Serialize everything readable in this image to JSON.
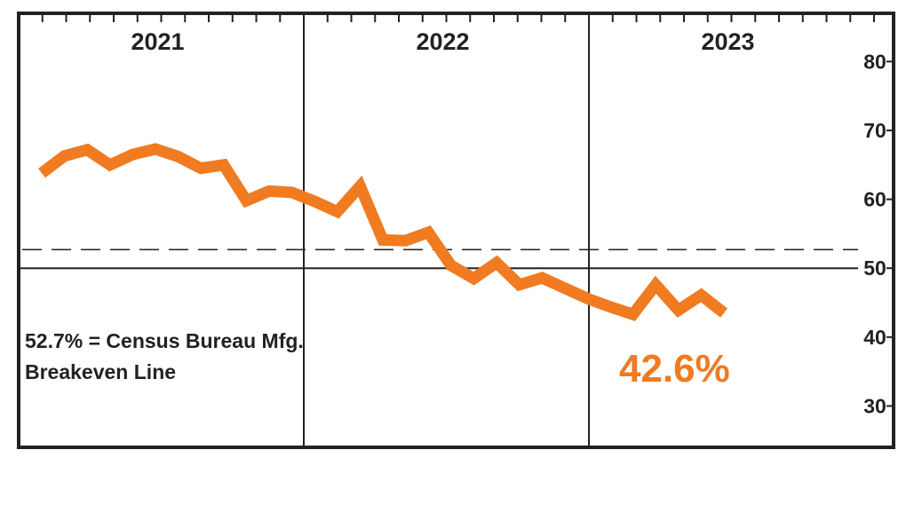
{
  "chart_data": {
    "type": "line",
    "title": "",
    "xlabel": "",
    "ylabel": "",
    "years": [
      "2021",
      "2022",
      "2023"
    ],
    "x": [
      "2021-01",
      "2021-02",
      "2021-03",
      "2021-04",
      "2021-05",
      "2021-06",
      "2021-07",
      "2021-08",
      "2021-09",
      "2021-10",
      "2021-11",
      "2021-12",
      "2022-01",
      "2022-02",
      "2022-03",
      "2022-04",
      "2022-05",
      "2022-06",
      "2022-07",
      "2022-08",
      "2022-09",
      "2022-10",
      "2022-11",
      "2022-12",
      "2023-01",
      "2023-02",
      "2023-03",
      "2023-04",
      "2023-05",
      "2023-06",
      "2023-07",
      "2023-08"
    ],
    "series": [
      {
        "values": [
          63.8,
          66.3,
          67.2,
          65.0,
          66.5,
          67.3,
          66.2,
          64.5,
          65.0,
          59.8,
          61.2,
          61.0,
          59.7,
          58.2,
          61.9,
          54.1,
          54.0,
          55.2,
          50.4,
          48.5,
          50.8,
          47.6,
          48.6,
          47.1,
          45.6,
          44.4,
          43.3,
          47.6,
          43.9,
          46.1,
          43.5,
          null
        ],
        "color": "#f07b21"
      }
    ],
    "ylim": [
      24,
      87
    ],
    "yticks": [
      "30",
      "40",
      "50",
      "60",
      "70",
      "80"
    ],
    "ytick_values": [
      30,
      40,
      50,
      60,
      70,
      80
    ],
    "breakeven_value": 52.7,
    "baseline_value": 50,
    "annotation": [
      "52.7% = Census Bureau Mfg.",
      "Breakeven Line"
    ],
    "callout": "42.6%",
    "callout_color": "#f07b21",
    "grid": false,
    "legend": "none"
  }
}
